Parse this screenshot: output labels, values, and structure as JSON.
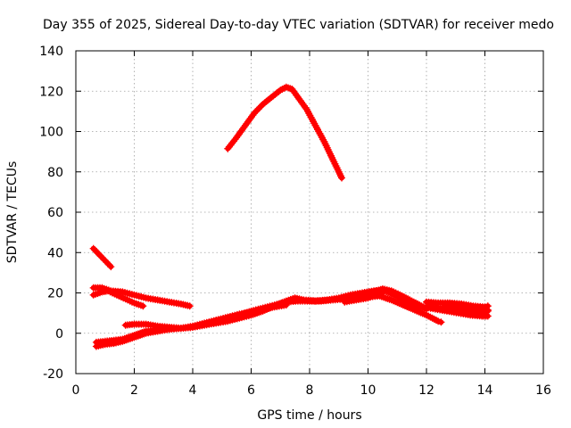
{
  "chart_data": {
    "type": "scatter",
    "title": "Day 355 of 2025, Sidereal Day-to-day VTEC variation (SDTVAR) for receiver medo",
    "xlabel": "GPS time / hours",
    "ylabel": "SDTVAR / TECUs",
    "xlim": [
      0,
      16
    ],
    "ylim": [
      -20,
      140
    ],
    "xticks": [
      0,
      2,
      4,
      6,
      8,
      10,
      12,
      14,
      16
    ],
    "yticks": [
      -20,
      0,
      20,
      40,
      60,
      80,
      100,
      120,
      140
    ],
    "grid": true,
    "marker": "plus",
    "color": "#ff0000",
    "series": [
      {
        "name": "track-1",
        "points": [
          [
            0.6,
            42
          ],
          [
            0.8,
            39
          ],
          [
            1.0,
            36
          ],
          [
            1.2,
            33
          ]
        ]
      },
      {
        "name": "track-2",
        "points": [
          [
            0.6,
            22.5
          ],
          [
            0.9,
            22.5
          ],
          [
            1.2,
            21
          ],
          [
            1.6,
            20.5
          ],
          [
            2.0,
            19
          ],
          [
            2.4,
            17.5
          ],
          [
            2.8,
            16.5
          ],
          [
            3.2,
            15.5
          ],
          [
            3.6,
            14.5
          ],
          [
            3.9,
            13.5
          ]
        ]
      },
      {
        "name": "track-3",
        "points": [
          [
            0.6,
            19
          ],
          [
            0.9,
            20.5
          ],
          [
            1.1,
            21
          ],
          [
            1.4,
            19
          ],
          [
            1.7,
            17
          ],
          [
            2.0,
            15
          ],
          [
            2.3,
            13.5
          ]
        ]
      },
      {
        "name": "track-4",
        "points": [
          [
            0.7,
            -6.5
          ],
          [
            1.0,
            -5.5
          ],
          [
            1.3,
            -5
          ],
          [
            1.6,
            -4
          ],
          [
            2.0,
            -2
          ],
          [
            2.4,
            0
          ],
          [
            2.8,
            1
          ],
          [
            3.2,
            2
          ],
          [
            3.6,
            2.5
          ],
          [
            4.0,
            3
          ],
          [
            4.4,
            4.5
          ],
          [
            4.8,
            5.5
          ],
          [
            5.2,
            7.5
          ],
          [
            5.6,
            9
          ],
          [
            6.0,
            11
          ],
          [
            6.4,
            12.5
          ],
          [
            6.8,
            14
          ],
          [
            7.2,
            15.5
          ],
          [
            7.6,
            16
          ],
          [
            8.0,
            16
          ],
          [
            8.4,
            16
          ],
          [
            8.8,
            16.5
          ],
          [
            9.2,
            17
          ],
          [
            9.6,
            17.5
          ],
          [
            10.0,
            18
          ],
          [
            10.4,
            18.5
          ],
          [
            10.8,
            16.5
          ],
          [
            11.2,
            14
          ],
          [
            11.6,
            11.5
          ],
          [
            12.0,
            9
          ],
          [
            12.4,
            6
          ],
          [
            12.5,
            5.5
          ]
        ]
      },
      {
        "name": "track-5",
        "points": [
          [
            0.7,
            -4.5
          ],
          [
            1.0,
            -4
          ],
          [
            1.3,
            -3.5
          ],
          [
            1.6,
            -3
          ],
          [
            1.8,
            -2
          ],
          [
            2.0,
            -1
          ],
          [
            2.4,
            1
          ],
          [
            2.8,
            1.5
          ],
          [
            3.2,
            2
          ],
          [
            3.6,
            2.5
          ],
          [
            4.0,
            3.5
          ],
          [
            4.4,
            5
          ],
          [
            4.8,
            6.5
          ],
          [
            5.2,
            8
          ],
          [
            5.6,
            9.5
          ],
          [
            6.0,
            10.5
          ],
          [
            6.4,
            12
          ],
          [
            6.8,
            13
          ],
          [
            7.2,
            14
          ]
        ]
      },
      {
        "name": "track-6",
        "points": [
          [
            1.7,
            4
          ],
          [
            2.0,
            4.5
          ],
          [
            2.4,
            4.5
          ],
          [
            2.8,
            3.5
          ],
          [
            3.2,
            3
          ],
          [
            3.6,
            2.5
          ],
          [
            4.0,
            3
          ],
          [
            4.4,
            4
          ],
          [
            4.8,
            5
          ],
          [
            5.2,
            6
          ],
          [
            5.6,
            7.5
          ],
          [
            6.0,
            9
          ],
          [
            6.4,
            11
          ],
          [
            6.8,
            13.5
          ],
          [
            7.2,
            16
          ],
          [
            7.5,
            17.5
          ],
          [
            7.8,
            16.5
          ],
          [
            8.2,
            16
          ],
          [
            8.6,
            16.5
          ],
          [
            9.0,
            17.5
          ],
          [
            9.4,
            19
          ],
          [
            9.8,
            20
          ],
          [
            10.2,
            21
          ],
          [
            10.5,
            21.5
          ],
          [
            10.9,
            19
          ],
          [
            11.3,
            16
          ],
          [
            11.7,
            13.5
          ],
          [
            12.0,
            12
          ]
        ]
      },
      {
        "name": "track-7",
        "points": [
          [
            9.2,
            15.5
          ],
          [
            9.6,
            16.5
          ],
          [
            10.0,
            17.5
          ],
          [
            10.3,
            19
          ],
          [
            10.5,
            20
          ]
        ]
      },
      {
        "name": "track-8",
        "points": [
          [
            10.0,
            20
          ],
          [
            10.3,
            21
          ],
          [
            10.5,
            22
          ],
          [
            10.8,
            21
          ],
          [
            11.1,
            19
          ],
          [
            11.5,
            16
          ],
          [
            11.9,
            13
          ],
          [
            12.3,
            12
          ],
          [
            12.7,
            11
          ],
          [
            13.1,
            10
          ],
          [
            13.5,
            9
          ],
          [
            13.9,
            8.5
          ],
          [
            14.1,
            8.5
          ]
        ]
      },
      {
        "name": "track-9",
        "points": [
          [
            12.0,
            15.5
          ],
          [
            12.4,
            15
          ],
          [
            12.8,
            15
          ],
          [
            13.2,
            14.5
          ],
          [
            13.6,
            13.5
          ],
          [
            14.0,
            13
          ],
          [
            14.1,
            13.5
          ]
        ]
      },
      {
        "name": "track-10",
        "points": [
          [
            12.0,
            13
          ],
          [
            12.4,
            12.5
          ],
          [
            12.8,
            11.5
          ],
          [
            13.2,
            11
          ],
          [
            13.6,
            10.5
          ],
          [
            14.0,
            10
          ],
          [
            14.1,
            11
          ]
        ]
      },
      {
        "name": "track-11",
        "points": [
          [
            12.6,
            13
          ],
          [
            13.0,
            13.5
          ],
          [
            13.4,
            12
          ],
          [
            13.8,
            11.5
          ],
          [
            14.1,
            11.5
          ]
        ]
      },
      {
        "name": "track-12",
        "points": [
          [
            5.2,
            91.5
          ],
          [
            5.5,
            97
          ],
          [
            5.8,
            103
          ],
          [
            6.1,
            109
          ],
          [
            6.4,
            113.5
          ],
          [
            6.7,
            117
          ],
          [
            7.0,
            120.5
          ],
          [
            7.2,
            122
          ],
          [
            7.4,
            121
          ],
          [
            7.6,
            117
          ],
          [
            7.9,
            111
          ],
          [
            8.2,
            103
          ],
          [
            8.5,
            95
          ],
          [
            8.8,
            86
          ],
          [
            9.1,
            77
          ]
        ]
      }
    ]
  }
}
